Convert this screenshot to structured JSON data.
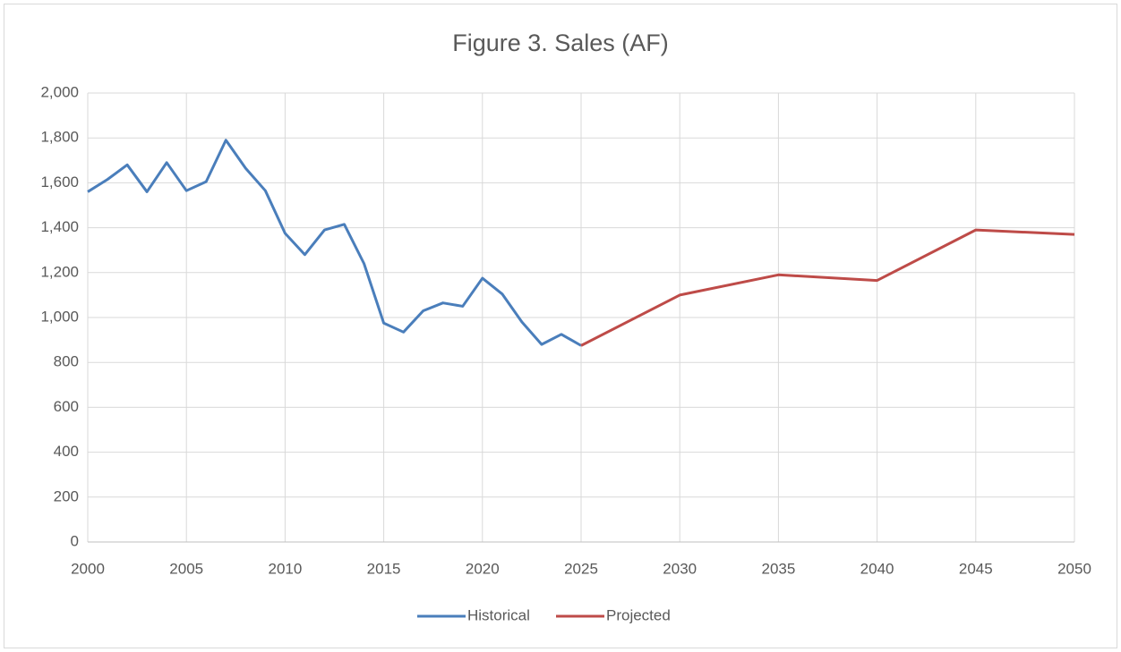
{
  "chart_data": {
    "type": "line",
    "title": "Figure 3. Sales (AF)",
    "series": [
      {
        "name": "Historical",
        "color": "#4a7ebb",
        "x": [
          2000,
          2001,
          2002,
          2003,
          2004,
          2005,
          2006,
          2007,
          2008,
          2009,
          2010,
          2011,
          2012,
          2013,
          2014,
          2015,
          2016,
          2017,
          2018,
          2019,
          2020,
          2021,
          2022,
          2023,
          2024,
          2025
        ],
        "values": [
          1560,
          1615,
          1680,
          1560,
          1690,
          1565,
          1605,
          1790,
          1665,
          1565,
          1375,
          1280,
          1390,
          1415,
          1240,
          975,
          935,
          1030,
          1065,
          1050,
          1175,
          1105,
          980,
          880,
          925,
          875
        ]
      },
      {
        "name": "Projected",
        "color": "#be4b48",
        "x": [
          2025,
          2030,
          2035,
          2040,
          2045,
          2050
        ],
        "values": [
          875,
          1100,
          1190,
          1165,
          1390,
          1370
        ]
      }
    ],
    "xlim": [
      2000,
      2050
    ],
    "xticks": [
      2000,
      2005,
      2010,
      2015,
      2020,
      2025,
      2030,
      2035,
      2040,
      2045,
      2050
    ],
    "ylim": [
      0,
      2000
    ],
    "yticks": [
      0,
      200,
      400,
      600,
      800,
      {
        "value": 1000,
        "label": "1,000"
      },
      {
        "value": 1200,
        "label": "1,200"
      },
      {
        "value": 1400,
        "label": "1,400"
      },
      {
        "value": 1600,
        "label": "1,600"
      },
      {
        "value": 1800,
        "label": "1,800"
      },
      {
        "value": 2000,
        "label": "2,000"
      }
    ],
    "grid": true,
    "legend": "bottom"
  }
}
